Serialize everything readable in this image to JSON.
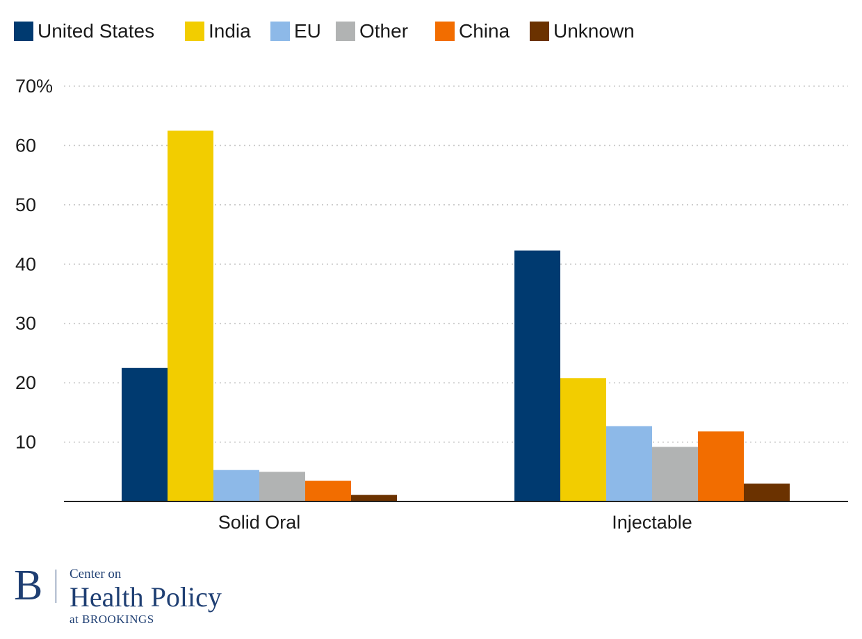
{
  "colors": {
    "United States": "#003a70",
    "India": "#f2cd00",
    "EU": "#8db9e8",
    "Other": "#b1b3b3",
    "China": "#f26d00",
    "Unknown": "#6b3200",
    "grid": "#c8c8c8",
    "axis": "#222222"
  },
  "chart_data": {
    "type": "bar",
    "categories": [
      "Solid Oral",
      "Injectable"
    ],
    "series": [
      {
        "name": "United States",
        "values": [
          22.5,
          42.3
        ]
      },
      {
        "name": "India",
        "values": [
          62.5,
          20.8
        ]
      },
      {
        "name": "EU",
        "values": [
          5.3,
          12.7
        ]
      },
      {
        "name": "Other",
        "values": [
          5.0,
          9.2
        ]
      },
      {
        "name": "China",
        "values": [
          3.5,
          11.8
        ]
      },
      {
        "name": "Unknown",
        "values": [
          1.1,
          3.0
        ]
      }
    ],
    "yticks": [
      10,
      20,
      30,
      40,
      50,
      60,
      70
    ],
    "ytick_labels": [
      "10",
      "20",
      "30",
      "40",
      "50",
      "60",
      "70%"
    ],
    "ylim": [
      0,
      70
    ],
    "grid": true,
    "legend": "top-left",
    "title": "",
    "xlabel": "",
    "ylabel": ""
  },
  "logo": {
    "letter": "B",
    "line1": "Center on",
    "line2": "Health Policy",
    "line3": "at BROOKINGS"
  }
}
